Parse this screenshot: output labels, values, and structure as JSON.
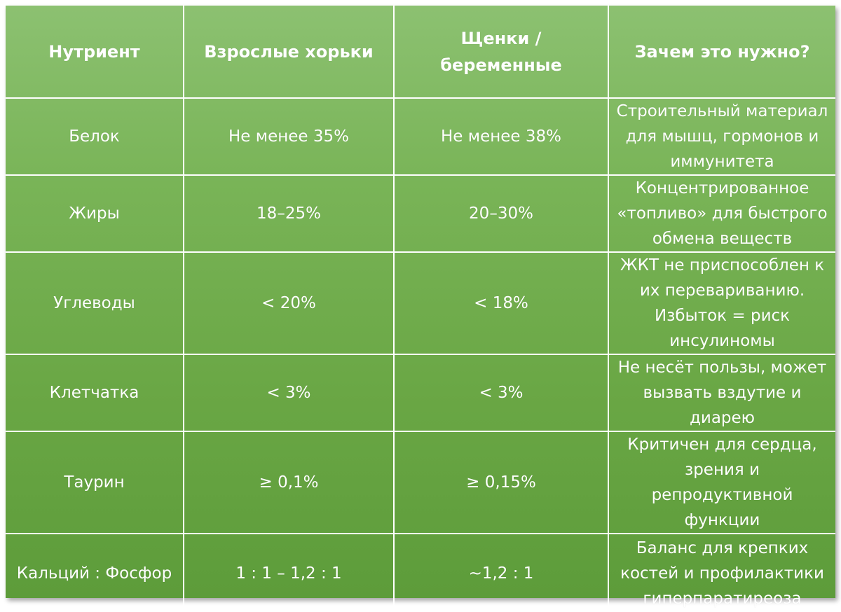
{
  "table": {
    "headers": [
      "Нутриент",
      "Взрослые хорьки",
      "Щенки / беременные",
      "Зачем это нужно?"
    ],
    "rows": [
      {
        "nutrient": "Белок",
        "adult": "Не менее 35%",
        "young": "Не менее 38%",
        "why": "Строительный материал для мышц, гормонов и иммунитета"
      },
      {
        "nutrient": "Жиры",
        "adult": "18–25%",
        "young": "20–30%",
        "why": "Концентрированное «топливо» для быстрого обмена веществ"
      },
      {
        "nutrient": "Углеводы",
        "adult": "< 20%",
        "young": "< 18%",
        "why": "ЖКТ не приспособлен к их перевариванию. Избыток = риск инсулиномы"
      },
      {
        "nutrient": "Клетчатка",
        "adult": "< 3%",
        "young": "< 3%",
        "why": "Не несёт пользы, может вызвать вздутие и диарею"
      },
      {
        "nutrient": "Таурин",
        "adult": "≥ 0,1%",
        "young": "≥ 0,15%",
        "why": "Критичен для сердца, зрения и репродуктивной функции"
      },
      {
        "nutrient": "Кальций : Фосфор",
        "adult": "1 : 1 – 1,2 : 1",
        "young": "~1,2 : 1",
        "why": "Баланс для крепких костей и профилактики гиперпаратиреоза"
      }
    ]
  },
  "colors": {
    "background_top": "#8cc171",
    "background_bottom": "#5d9c3a",
    "grid_lines": "#ffffff",
    "text": "#ffffff"
  }
}
